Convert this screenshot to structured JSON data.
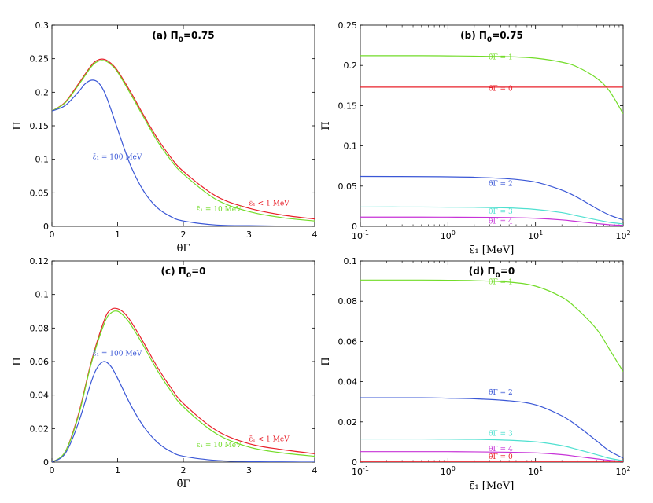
{
  "colors": {
    "red": "#e8202a",
    "green": "#72dc28",
    "blue": "#3a57d6",
    "cyan": "#4fe0d0",
    "magenta": "#c733d8",
    "dark_green": "#8a9a10"
  },
  "chart_data": [
    {
      "id": "a",
      "type": "line",
      "title": "(a) Π",
      "title_sub": "0",
      "title_tail": "=0.75",
      "xlabel": "θ̄Γ",
      "ylabel": "Π",
      "xscale": "linear",
      "xlim": [
        0,
        4
      ],
      "ylim": [
        0,
        0.3
      ],
      "xticks": [
        0,
        1,
        2,
        3,
        4
      ],
      "xtick_labels": [
        "0",
        "1",
        "2",
        "3",
        "4"
      ],
      "yticks": [
        0,
        0.05,
        0.1,
        0.15,
        0.2,
        0.25,
        0.3
      ],
      "ytick_labels": [
        "0",
        "0.05",
        "0.1",
        "0.15",
        "0.2",
        "0.25",
        "0.3"
      ],
      "series": [
        {
          "name": "ε̄₁ < 1 MeV",
          "color": "#e8202a",
          "x": [
            0,
            0.2,
            0.4,
            0.6,
            0.7,
            0.8,
            0.9,
            1.0,
            1.2,
            1.4,
            1.6,
            1.8,
            2.0,
            2.5,
            3.0,
            3.5,
            4.0
          ],
          "y": [
            0.172,
            0.185,
            0.212,
            0.24,
            0.248,
            0.249,
            0.243,
            0.232,
            0.2,
            0.165,
            0.132,
            0.104,
            0.082,
            0.045,
            0.027,
            0.017,
            0.011
          ]
        },
        {
          "name": "ε̄₁ = 10 MeV",
          "color": "#72dc28",
          "x": [
            0,
            0.2,
            0.4,
            0.6,
            0.7,
            0.8,
            0.9,
            1.0,
            1.2,
            1.4,
            1.6,
            1.8,
            2.0,
            2.5,
            3.0,
            3.5,
            4.0
          ],
          "y": [
            0.172,
            0.184,
            0.21,
            0.238,
            0.246,
            0.247,
            0.241,
            0.23,
            0.197,
            0.162,
            0.128,
            0.1,
            0.078,
            0.04,
            0.022,
            0.013,
            0.008
          ]
        },
        {
          "name": "ε̄₁ = 100 MeV",
          "color": "#3a57d6",
          "x": [
            0,
            0.2,
            0.4,
            0.5,
            0.6,
            0.7,
            0.8,
            0.9,
            1.0,
            1.2,
            1.4,
            1.6,
            1.8,
            2.0,
            2.5,
            3.0,
            3.5,
            4.0
          ],
          "y": [
            0.172,
            0.18,
            0.2,
            0.212,
            0.218,
            0.215,
            0.2,
            0.174,
            0.145,
            0.09,
            0.052,
            0.028,
            0.015,
            0.008,
            0.002,
            0.001,
            0.0003,
            0.0001
          ]
        }
      ],
      "labels": [
        {
          "text": "ε̄₁ = 100 MeV",
          "color": "#3a57d6",
          "x": 0.62,
          "y": 0.1
        },
        {
          "text": "ε̄₁ < 1 MeV",
          "color": "#e8202a",
          "x": 3.0,
          "y": 0.031
        },
        {
          "text": "ε̄₁ = 10 MeV",
          "color": "#72dc28",
          "x": 2.2,
          "y": 0.022
        }
      ]
    },
    {
      "id": "b",
      "type": "line",
      "title": "(b) Π",
      "title_sub": "0",
      "title_tail": "=0.75",
      "xlabel": "ε̄₁ [MeV]",
      "ylabel": "Π",
      "xscale": "log",
      "xlim": [
        0.1,
        100
      ],
      "ylim": [
        0,
        0.25
      ],
      "xticks": [
        0.1,
        1,
        10,
        100
      ],
      "xtick_labels": [
        "10^-1",
        "10^0",
        "10^1",
        "10^2"
      ],
      "yticks": [
        0,
        0.05,
        0.1,
        0.15,
        0.2,
        0.25
      ],
      "ytick_labels": [
        "0",
        "0.05",
        "0.1",
        "0.15",
        "0.2",
        "0.25"
      ],
      "series": [
        {
          "name": "θ̄Γ = 1",
          "color": "#72dc28",
          "x": [
            0.1,
            0.5,
            1,
            2,
            5,
            10,
            20,
            30,
            50,
            70,
            100
          ],
          "y": [
            0.212,
            0.212,
            0.2118,
            0.2115,
            0.2108,
            0.209,
            0.204,
            0.198,
            0.184,
            0.168,
            0.14
          ]
        },
        {
          "name": "θ̄Γ = 0",
          "color": "#e8202a",
          "x": [
            0.1,
            100
          ],
          "y": [
            0.173,
            0.173
          ]
        },
        {
          "name": "θ̄Γ = 2",
          "color": "#3a57d6",
          "x": [
            0.1,
            0.5,
            1,
            2,
            5,
            10,
            20,
            30,
            50,
            70,
            100
          ],
          "y": [
            0.062,
            0.0618,
            0.0615,
            0.061,
            0.059,
            0.055,
            0.045,
            0.036,
            0.022,
            0.014,
            0.008
          ]
        },
        {
          "name": "θ̄Γ = 3",
          "color": "#4fe0d0",
          "x": [
            0.1,
            0.5,
            1,
            2,
            5,
            10,
            20,
            30,
            50,
            70,
            100
          ],
          "y": [
            0.024,
            0.024,
            0.0238,
            0.0236,
            0.0228,
            0.021,
            0.017,
            0.013,
            0.008,
            0.005,
            0.003
          ]
        },
        {
          "name": "θ̄Γ = 4",
          "color": "#c733d8",
          "x": [
            0.1,
            0.5,
            1,
            2,
            5,
            10,
            20,
            30,
            50,
            70,
            100
          ],
          "y": [
            0.0115,
            0.0115,
            0.0114,
            0.0113,
            0.0109,
            0.01,
            0.008,
            0.006,
            0.0035,
            0.002,
            0.0012
          ]
        }
      ],
      "labels": [
        {
          "text": "θ̄Γ = 1",
          "color": "#72dc28",
          "x": 4,
          "y": 0.2075
        },
        {
          "text": "θ̄Γ = 0",
          "color": "#e8202a",
          "x": 4,
          "y": 0.1685
        },
        {
          "text": "θ̄Γ = 2",
          "color": "#3a57d6",
          "x": 4,
          "y": 0.0505
        },
        {
          "text": "θ̄Γ = 3",
          "color": "#4fe0d0",
          "x": 4,
          "y": 0.0155
        },
        {
          "text": "θ̄Γ = 4",
          "color": "#c733d8",
          "x": 4,
          "y": 0.0035
        }
      ]
    },
    {
      "id": "c",
      "type": "line",
      "title": "(c) Π",
      "title_sub": "0",
      "title_tail": "=0",
      "xlabel": "θ̄Γ",
      "ylabel": "Π",
      "xscale": "linear",
      "xlim": [
        0,
        4
      ],
      "ylim": [
        0,
        0.12
      ],
      "xticks": [
        0,
        1,
        2,
        3,
        4
      ],
      "xtick_labels": [
        "0",
        "1",
        "2",
        "3",
        "4"
      ],
      "yticks": [
        0,
        0.02,
        0.04,
        0.06,
        0.08,
        0.1,
        0.12
      ],
      "ytick_labels": [
        "0",
        "0.02",
        "0.04",
        "0.06",
        "0.08",
        "0.1",
        "0.12"
      ],
      "series": [
        {
          "name": "ε̄₁ < 1 MeV",
          "color": "#e8202a",
          "x": [
            0,
            0.2,
            0.4,
            0.6,
            0.8,
            0.9,
            1.0,
            1.1,
            1.2,
            1.4,
            1.6,
            1.8,
            2.0,
            2.5,
            3.0,
            3.5,
            4.0
          ],
          "y": [
            0,
            0.006,
            0.028,
            0.06,
            0.085,
            0.091,
            0.0915,
            0.089,
            0.084,
            0.071,
            0.057,
            0.045,
            0.035,
            0.019,
            0.011,
            0.0075,
            0.005
          ]
        },
        {
          "name": "ε̄₁ = 10 MeV",
          "color": "#72dc28",
          "x": [
            0,
            0.2,
            0.4,
            0.6,
            0.8,
            0.9,
            1.0,
            1.1,
            1.2,
            1.4,
            1.6,
            1.8,
            2.0,
            2.5,
            3.0,
            3.5,
            4.0
          ],
          "y": [
            0,
            0.006,
            0.027,
            0.059,
            0.083,
            0.089,
            0.09,
            0.087,
            0.082,
            0.069,
            0.055,
            0.043,
            0.033,
            0.017,
            0.009,
            0.0055,
            0.0035
          ]
        },
        {
          "name": "ε̄₁ = 100 MeV",
          "color": "#3a57d6",
          "x": [
            0,
            0.2,
            0.4,
            0.6,
            0.7,
            0.8,
            0.9,
            1.0,
            1.2,
            1.4,
            1.6,
            1.8,
            2.0,
            2.5,
            3.0,
            3.5,
            4.0
          ],
          "y": [
            0,
            0.005,
            0.023,
            0.048,
            0.057,
            0.06,
            0.057,
            0.05,
            0.034,
            0.021,
            0.012,
            0.0065,
            0.0035,
            0.001,
            0.0003,
            0.0001,
            0
          ]
        }
      ],
      "labels": [
        {
          "text": "ε̄₁ = 100 MeV",
          "color": "#3a57d6",
          "x": 0.62,
          "y": 0.0635
        },
        {
          "text": "ε̄₁ < 1 MeV",
          "color": "#e8202a",
          "x": 3.0,
          "y": 0.0125
        },
        {
          "text": "ε̄₁ = 10 MeV",
          "color": "#72dc28",
          "x": 2.2,
          "y": 0.009
        }
      ]
    },
    {
      "id": "d",
      "type": "line",
      "title": "(d) Π",
      "title_sub": "0",
      "title_tail": "=0",
      "xlabel": "ε̄₁ [MeV]",
      "ylabel": "Π",
      "xscale": "log",
      "xlim": [
        0.1,
        100
      ],
      "ylim": [
        0,
        0.1
      ],
      "xticks": [
        0.1,
        1,
        10,
        100
      ],
      "xtick_labels": [
        "10^-1",
        "10^0",
        "10^1",
        "10^2"
      ],
      "yticks": [
        0,
        0.02,
        0.04,
        0.06,
        0.08,
        0.1
      ],
      "ytick_labels": [
        "0",
        "0.02",
        "0.04",
        "0.06",
        "0.08",
        "0.1"
      ],
      "series": [
        {
          "name": "θ̄Γ = 1",
          "color": "#72dc28",
          "x": [
            0.1,
            0.5,
            1,
            2,
            5,
            10,
            20,
            30,
            50,
            70,
            100
          ],
          "y": [
            0.0905,
            0.0905,
            0.0904,
            0.0902,
            0.0895,
            0.0875,
            0.082,
            0.076,
            0.066,
            0.056,
            0.045
          ]
        },
        {
          "name": "θ̄Γ = 2",
          "color": "#3a57d6",
          "x": [
            0.1,
            0.5,
            1,
            2,
            5,
            10,
            20,
            30,
            50,
            70,
            100
          ],
          "y": [
            0.032,
            0.032,
            0.0318,
            0.0315,
            0.0305,
            0.0285,
            0.023,
            0.018,
            0.0105,
            0.0055,
            0.002
          ]
        },
        {
          "name": "θ̄Γ = 3",
          "color": "#4fe0d0",
          "x": [
            0.1,
            0.5,
            1,
            2,
            5,
            10,
            20,
            30,
            50,
            70,
            100
          ],
          "y": [
            0.0115,
            0.0115,
            0.0114,
            0.0113,
            0.0109,
            0.0101,
            0.0082,
            0.0063,
            0.0037,
            0.0019,
            0.0007
          ]
        },
        {
          "name": "θ̄Γ = 4",
          "color": "#c733d8",
          "x": [
            0.1,
            0.5,
            1,
            2,
            5,
            10,
            20,
            30,
            50,
            70,
            100
          ],
          "y": [
            0.0052,
            0.0052,
            0.0052,
            0.0051,
            0.0049,
            0.0046,
            0.0037,
            0.0028,
            0.0016,
            0.0009,
            0.0003
          ]
        },
        {
          "name": "θ̄Γ = 0",
          "color": "#e8202a",
          "x": [
            0.1,
            100
          ],
          "y": [
            0.0001,
            0.0001
          ]
        }
      ],
      "labels": [
        {
          "text": "θ̄Γ = 1",
          "color": "#72dc28",
          "x": 4,
          "y": 0.0885
        },
        {
          "text": "θ̄Γ = 2",
          "color": "#3a57d6",
          "x": 4,
          "y": 0.0335
        },
        {
          "text": "θ̄Γ = 3",
          "color": "#4fe0d0",
          "x": 4,
          "y": 0.013
        },
        {
          "text": "θ̄Γ = 4",
          "color": "#c733d8",
          "x": 4,
          "y": 0.0055
        },
        {
          "text": "θ̄Γ = 0",
          "color": "#e8202a",
          "x": 4,
          "y": 0.0015
        }
      ]
    }
  ]
}
